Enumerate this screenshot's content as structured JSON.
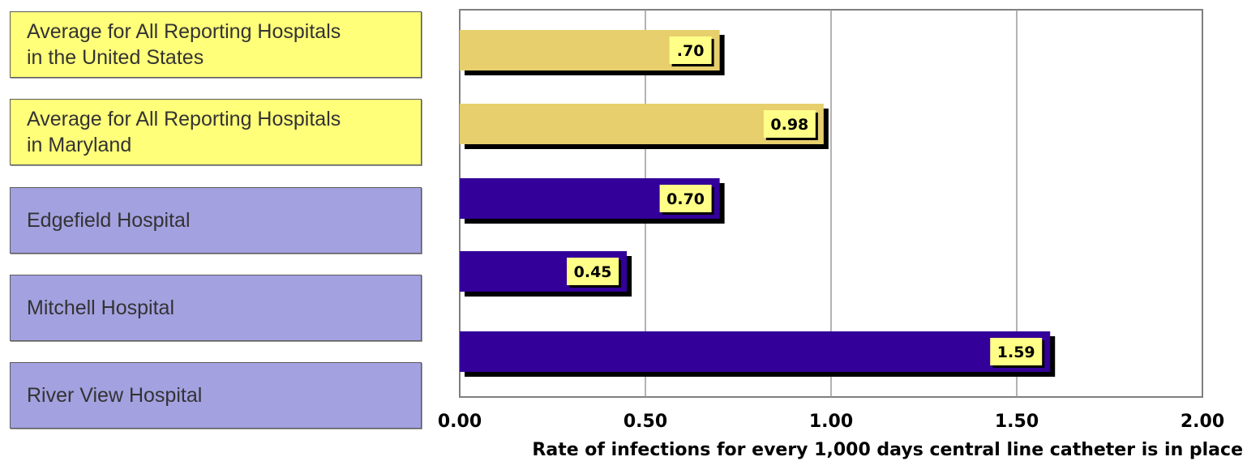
{
  "chart_data": {
    "type": "bar",
    "orientation": "horizontal",
    "categories": [
      "Average for All Reporting Hospitals\nin the United States",
      "Average for All Reporting Hospitals\nin Maryland",
      "Edgefield Hospital",
      "Mitchell Hospital",
      "River View Hospital"
    ],
    "values": [
      0.7,
      0.98,
      0.7,
      0.45,
      1.59
    ],
    "data_labels": [
      ".70",
      "0.98",
      "0.70",
      "0.45",
      "1.59"
    ],
    "xlabel": "Rate of infections for every 1,000 days central line catheter is in place",
    "ylabel": "",
    "xlim": [
      0,
      2
    ],
    "x_ticks": [
      0,
      0.5,
      1.0,
      1.5,
      2.0
    ],
    "x_tick_labels": [
      "0.00",
      "0.50",
      "1.00",
      "1.50",
      "2.00"
    ],
    "grid": true,
    "legend": "none",
    "colors": {
      "average_bar": "#e6cf6c",
      "hospital_bar": "#330099",
      "average_label_box": "#ffff7a",
      "hospital_label_box": "#a3a1e0",
      "data_label_box": "#ffff88",
      "gridline": "#9a9a9a",
      "plot_border": "#7f7f7f"
    },
    "bar_groups": [
      "average",
      "average",
      "hospital",
      "hospital",
      "hospital"
    ]
  }
}
